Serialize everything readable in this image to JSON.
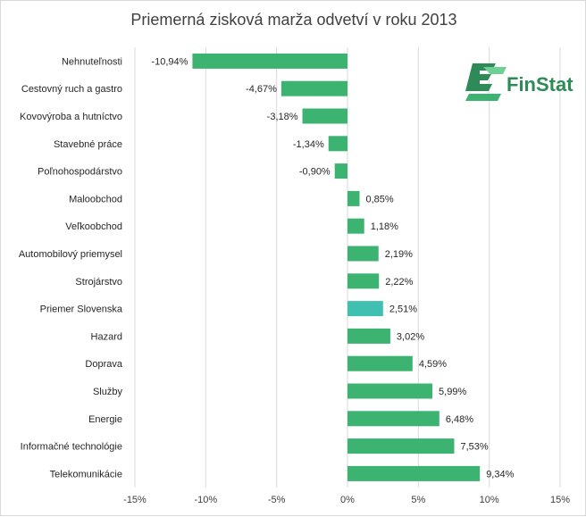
{
  "chart_data": {
    "type": "bar",
    "orientation": "horizontal",
    "title": "Priemerná zisková marža odvetví v roku 2013",
    "categories": [
      "Nehnuteľnosti",
      "Cestovný ruch a gastro",
      "Kovovýroba a hutníctvo",
      "Stavebné práce",
      "Poľnohospodárstvo",
      "Maloobchod",
      "Veľkoobchod",
      "Automobilový priemysel",
      "Strojárstvo",
      "Priemer Slovenska",
      "Hazard",
      "Doprava",
      "Služby",
      "Energie",
      "Informačné technológie",
      "Telekomunikácie"
    ],
    "values": [
      -10.94,
      -4.67,
      -3.18,
      -1.34,
      -0.9,
      0.85,
      1.18,
      2.19,
      2.22,
      2.51,
      3.02,
      4.59,
      5.99,
      6.48,
      7.53,
      9.34
    ],
    "value_labels": [
      "-10,94%",
      "-4,67%",
      "-3,18%",
      "-1,34%",
      "-0,90%",
      "0,85%",
      "1,18%",
      "2,19%",
      "2,22%",
      "2,51%",
      "3,02%",
      "4,59%",
      "5,99%",
      "6,48%",
      "7,53%",
      "9,34%"
    ],
    "highlight_category": "Priemer Slovenska",
    "xlim": [
      -15,
      15
    ],
    "xticks": [
      -15,
      -10,
      -5,
      0,
      5,
      10,
      15
    ],
    "xtick_labels": [
      "-15%",
      "-10%",
      "-5%",
      "0%",
      "5%",
      "10%",
      "15%"
    ],
    "grid": "vertical",
    "colors": {
      "bar": "#3cb371",
      "highlight": "#40c0b0",
      "grid": "#d9d9d9"
    }
  },
  "logo": {
    "text": "FinStat",
    "color": "#2e8b57"
  }
}
